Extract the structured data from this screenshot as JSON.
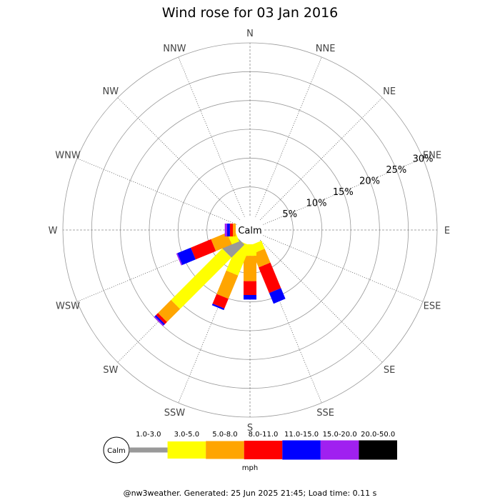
{
  "chart_data": {
    "type": "windrose",
    "title": "Wind rose for 03 Jan 2016",
    "directions": [
      "N",
      "NNE",
      "NE",
      "ENE",
      "E",
      "ESE",
      "SE",
      "SSE",
      "S",
      "SSW",
      "SW",
      "WSW",
      "W",
      "WNW",
      "NW",
      "NNW"
    ],
    "radial_ticks": [
      "5%",
      "10%",
      "15%",
      "20%",
      "25%",
      "30%"
    ],
    "radial_max": 30,
    "calm_label": "Calm",
    "speed_bins": [
      "1.0-3.0",
      "3.0-5.0",
      "5.0-8.0",
      "8.0-11.0",
      "11.0-15.0",
      "15.0-20.0",
      "20.0-50.0"
    ],
    "bin_colors": [
      "#999999",
      "#ffff00",
      "#ffa500",
      "#ff0000",
      "#0000ff",
      "#a020f0",
      "#000000"
    ],
    "units": "mph",
    "series": [
      {
        "direction": "SE",
        "values": [
          0,
          0,
          0,
          0,
          0,
          0,
          0
        ]
      },
      {
        "direction": "SSE",
        "values": [
          0,
          1.5,
          2.6,
          4.8,
          2.0,
          0,
          0
        ]
      },
      {
        "direction": "S",
        "values": [
          0,
          2.0,
          4.4,
          2.4,
          0.8,
          0,
          0
        ]
      },
      {
        "direction": "SSW",
        "values": [
          0,
          5.6,
          4.4,
          1.8,
          0.3,
          0,
          0
        ]
      },
      {
        "direction": "SW",
        "values": [
          3.2,
          12.6,
          3.2,
          0.5,
          0.3,
          0.2,
          0
        ]
      },
      {
        "direction": "WSW",
        "values": [
          0,
          1.4,
          3.0,
          3.8,
          2.5,
          0.2,
          0
        ]
      },
      {
        "direction": "W",
        "values": [
          0,
          0,
          0.5,
          0.5,
          0.5,
          0.4,
          0
        ]
      }
    ],
    "grid": true
  },
  "footer": "@nw3weather. Generated: 25 Jun 2025 21:45; Load time: 0.11 s"
}
